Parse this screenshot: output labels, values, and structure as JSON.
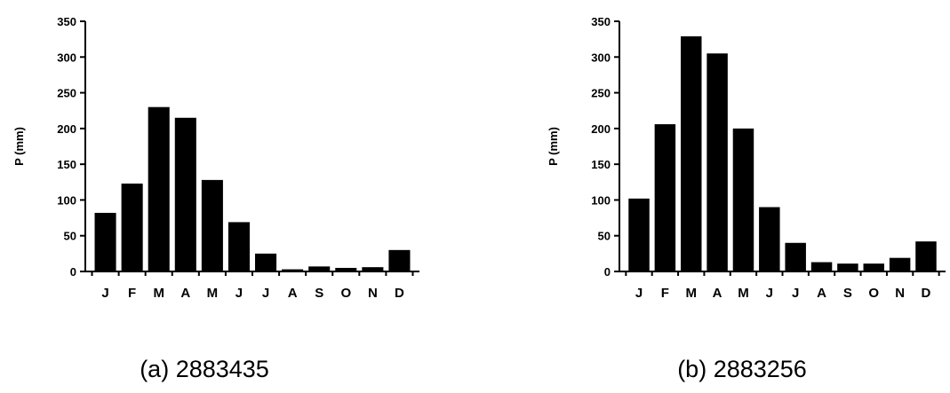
{
  "chart_data": [
    {
      "type": "bar",
      "caption": "(a) 2883435",
      "ylabel": "P (mm)",
      "xlabel": "",
      "ylim": [
        0,
        350
      ],
      "yticks": [
        0,
        50,
        100,
        150,
        200,
        250,
        300,
        350
      ],
      "categories": [
        "J",
        "F",
        "M",
        "A",
        "M",
        "J",
        "J",
        "A",
        "S",
        "O",
        "N",
        "D"
      ],
      "values": [
        82,
        123,
        230,
        215,
        128,
        69,
        25,
        3,
        7,
        5,
        6,
        30
      ],
      "bar_color": "#000000"
    },
    {
      "type": "bar",
      "caption": "(b) 2883256",
      "ylabel": "P (mm)",
      "xlabel": "",
      "ylim": [
        0,
        350
      ],
      "yticks": [
        0,
        50,
        100,
        150,
        200,
        250,
        300,
        350
      ],
      "categories": [
        "J",
        "F",
        "M",
        "A",
        "M",
        "J",
        "J",
        "A",
        "S",
        "O",
        "N",
        "D"
      ],
      "values": [
        102,
        206,
        329,
        305,
        200,
        90,
        40,
        13,
        11,
        11,
        19,
        42
      ],
      "bar_color": "#000000"
    }
  ]
}
